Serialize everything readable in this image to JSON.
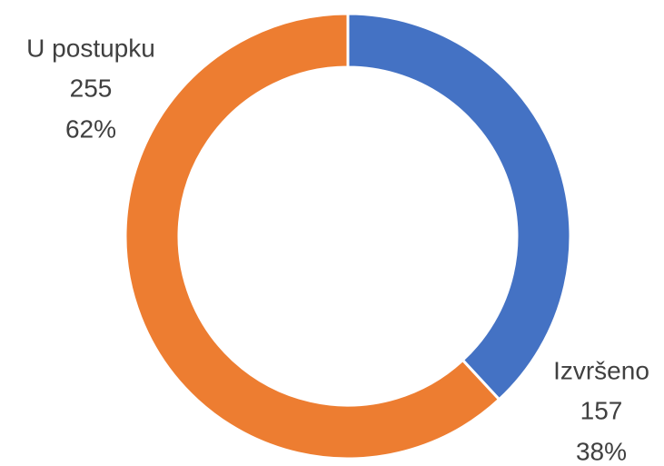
{
  "chart_data": {
    "type": "donut",
    "categories": [
      "Izvršeno",
      "U postupku"
    ],
    "values": [
      157,
      255
    ],
    "percent_labels": [
      "38%",
      "62%"
    ],
    "colors": [
      "#4472c4",
      "#ed7d31"
    ]
  }
}
